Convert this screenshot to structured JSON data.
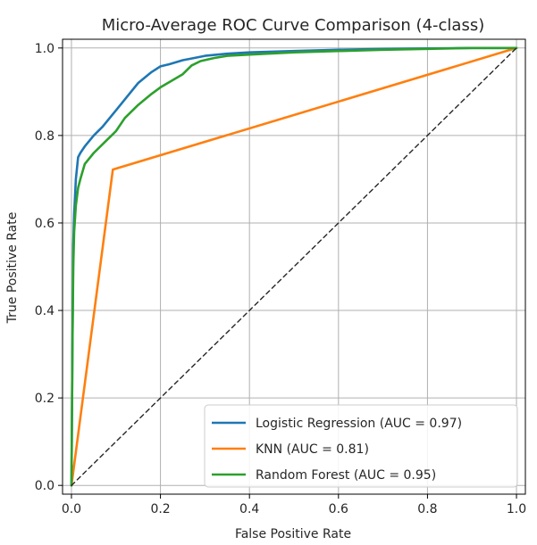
{
  "chart_data": {
    "type": "line",
    "title": "Micro-Average ROC Curve Comparison (4-class)",
    "xlabel": "False Positive Rate",
    "ylabel": "True Positive Rate",
    "xlim": [
      -0.02,
      1.02
    ],
    "ylim": [
      -0.02,
      1.02
    ],
    "xticks": [
      "0.0",
      "0.2",
      "0.4",
      "0.6",
      "0.8",
      "1.0"
    ],
    "yticks": [
      "0.0",
      "0.2",
      "0.4",
      "0.6",
      "0.8",
      "1.0"
    ],
    "grid": true,
    "legend_position": "bottom-right",
    "series": [
      {
        "name": "Logistic Regression (AUC = 0.97)",
        "color": "#1f77b4",
        "x": [
          0.0,
          0.002,
          0.004,
          0.006,
          0.01,
          0.015,
          0.02,
          0.03,
          0.05,
          0.07,
          0.09,
          0.11,
          0.13,
          0.15,
          0.18,
          0.2,
          0.22,
          0.25,
          0.28,
          0.3,
          0.35,
          0.4,
          0.5,
          0.6,
          0.7,
          0.8,
          0.9,
          1.0
        ],
        "y": [
          0.0,
          0.3,
          0.55,
          0.62,
          0.7,
          0.75,
          0.76,
          0.775,
          0.8,
          0.82,
          0.845,
          0.87,
          0.895,
          0.92,
          0.945,
          0.958,
          0.963,
          0.972,
          0.978,
          0.982,
          0.987,
          0.99,
          0.993,
          0.996,
          0.998,
          0.999,
          1.0,
          1.0
        ]
      },
      {
        "name": "KNN (AUC = 0.81)",
        "color": "#ff7f0e",
        "x": [
          0.0,
          0.093,
          1.0
        ],
        "y": [
          0.0,
          0.722,
          1.0
        ]
      },
      {
        "name": "Random Forest (AUC = 0.95)",
        "color": "#2ca02c",
        "x": [
          0.0,
          0.002,
          0.004,
          0.006,
          0.01,
          0.015,
          0.02,
          0.03,
          0.05,
          0.08,
          0.1,
          0.12,
          0.15,
          0.18,
          0.2,
          0.23,
          0.25,
          0.27,
          0.29,
          0.32,
          0.35,
          0.4,
          0.5,
          0.6,
          0.7,
          0.8,
          0.9,
          1.0
        ],
        "y": [
          0.0,
          0.3,
          0.5,
          0.58,
          0.64,
          0.68,
          0.7,
          0.735,
          0.76,
          0.79,
          0.81,
          0.84,
          0.87,
          0.895,
          0.91,
          0.928,
          0.94,
          0.96,
          0.97,
          0.977,
          0.982,
          0.985,
          0.99,
          0.993,
          0.996,
          0.998,
          1.0,
          1.0
        ]
      },
      {
        "name": "",
        "color": "#262626",
        "dashed": true,
        "x": [
          0.0,
          1.0
        ],
        "y": [
          0.0,
          1.0
        ]
      }
    ]
  }
}
